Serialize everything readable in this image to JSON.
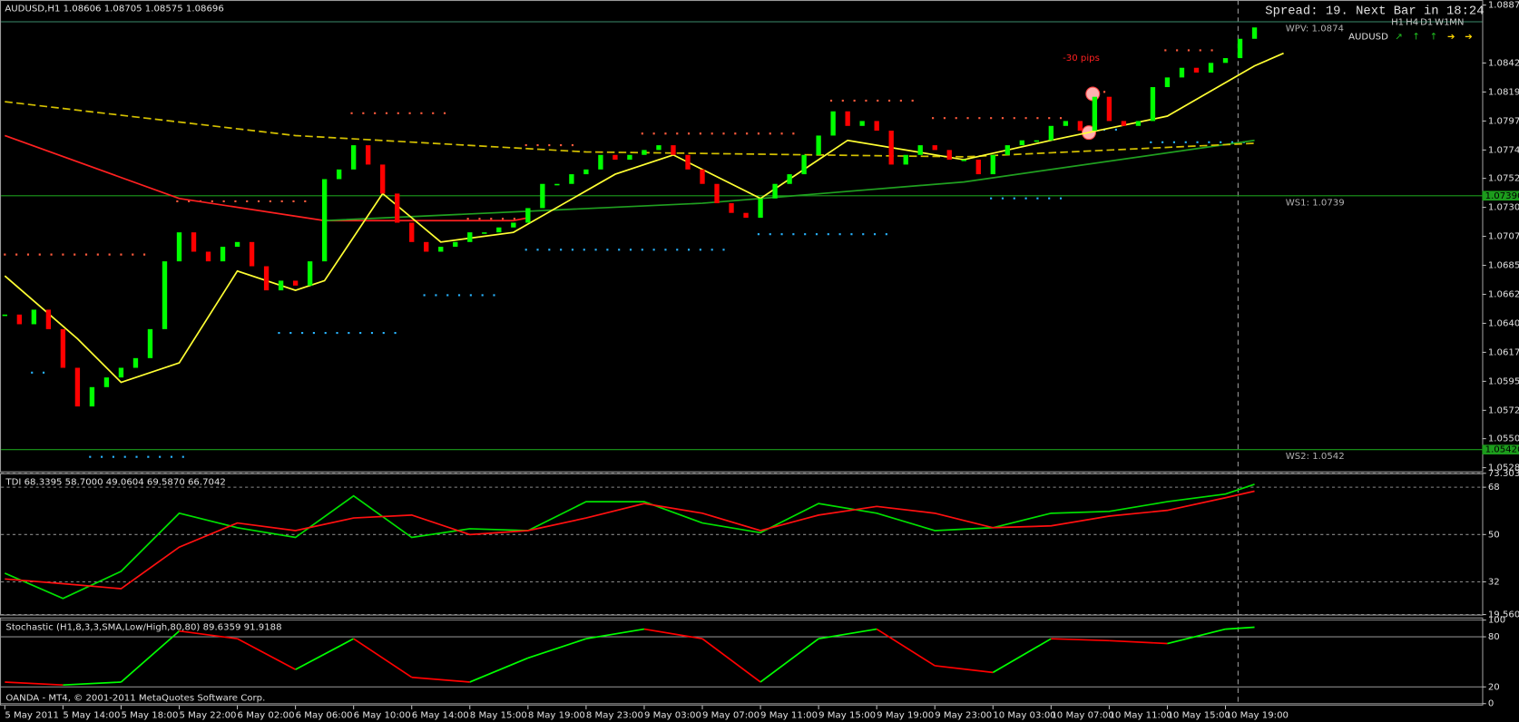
{
  "chart_data": [
    {
      "type": "candlestick",
      "title": "AUDUSD,H1 1.08606 1.08705 1.08575 1.08696",
      "spread": "Spread: 19. Next Bar in 18:24",
      "symbol": "AUDUSD",
      "timeframes": [
        "H1",
        "H4",
        "D1",
        "W1",
        "MN"
      ],
      "annotation": "-30 pips",
      "colors": {
        "up": "#00ff00",
        "down": "#ff0000"
      },
      "ylim": [
        1.05244,
        1.08909
      ],
      "yticks": [
        {
          "value": 1.0887,
          "label": "1.08870"
        },
        {
          "value": 1.0842,
          "label": "1.08420"
        },
        {
          "value": 1.08195,
          "label": "1.08195"
        },
        {
          "value": 1.0797,
          "label": "1.07970"
        },
        {
          "value": 1.07745,
          "label": "1.07745"
        },
        {
          "value": 1.07525,
          "label": "1.07525"
        },
        {
          "value": 1.073,
          "label": "1.07300"
        },
        {
          "value": 1.07075,
          "label": "1.07075"
        },
        {
          "value": 1.0685,
          "label": "1.06850"
        },
        {
          "value": 1.06625,
          "label": "1.06625"
        },
        {
          "value": 1.064,
          "label": "1.06400"
        },
        {
          "value": 1.06175,
          "label": "1.06175"
        },
        {
          "value": 1.0595,
          "label": "1.05950"
        },
        {
          "value": 1.05725,
          "label": "1.05725"
        },
        {
          "value": 1.05505,
          "label": "1.05505"
        },
        {
          "value": 1.0528,
          "label": "1.05280"
        }
      ],
      "close": [
        1.06468,
        1.06393,
        1.06506,
        1.06355,
        1.06055,
        1.05755,
        1.05905,
        1.0598,
        1.06055,
        1.0613,
        1.06355,
        1.06881,
        1.07106,
        1.06956,
        1.06881,
        1.06994,
        1.07031,
        1.06843,
        1.06656,
        1.06731,
        1.06693,
        1.06881,
        1.07519,
        1.07594,
        1.07782,
        1.07632,
        1.07407,
        1.07181,
        1.07031,
        1.06956,
        1.06994,
        1.07031,
        1.07106,
        1.07106,
        1.07144,
        1.07181,
        1.07294,
        1.07482,
        1.07482,
        1.07557,
        1.07594,
        1.07707,
        1.0767,
        1.07707,
        1.07745,
        1.07782,
        1.07707,
        1.07594,
        1.07482,
        1.07332,
        1.07257,
        1.07219,
        1.07369,
        1.07482,
        1.07557,
        1.07707,
        1.07857,
        1.08045,
        1.07932,
        1.0797,
        1.07895,
        1.07632,
        1.07707,
        1.07782,
        1.07745,
        1.0767,
        1.0767,
        1.07557,
        1.07707,
        1.07782,
        1.0782,
        1.0782,
        1.07932,
        1.0797,
        1.07895,
        1.08158,
        1.0797,
        1.07932,
        1.0797,
        1.08233,
        1.08308,
        1.08383,
        1.08346,
        1.08421,
        1.08458,
        1.08608,
        1.08696
      ],
      "moving_averages": [
        {
          "color": "#ff2020",
          "dashed": false,
          "x": [
            0,
            12,
            22,
            35,
            36
          ],
          "values": [
            1.07857,
            1.07369,
            1.07197,
            1.07197,
            1.07219
          ]
        },
        {
          "color": "#20a020",
          "dashed": false,
          "x": [
            22,
            48,
            66,
            86
          ],
          "values": [
            1.07197,
            1.07332,
            1.07497,
            1.0782
          ]
        },
        {
          "color": "#d4c000",
          "dashed": true,
          "x": [
            0,
            20,
            40,
            66,
            86
          ],
          "values": [
            1.0812,
            1.07857,
            1.0773,
            1.07692,
            1.07797
          ]
        },
        {
          "color": "#ffff33",
          "dashed": false,
          "x": [
            0,
            5,
            8,
            12,
            16,
            20,
            22,
            26,
            30,
            35,
            42,
            46,
            52,
            58,
            66,
            72,
            80,
            86,
            88
          ],
          "values": [
            1.06768,
            1.0628,
            1.05942,
            1.06093,
            1.06806,
            1.06656,
            1.06731,
            1.07407,
            1.07031,
            1.07106,
            1.07557,
            1.07707,
            1.07369,
            1.0782,
            1.0767,
            1.0782,
            1.08008,
            1.08398,
            1.08496
          ]
        }
      ],
      "pivots": [
        {
          "label": "WPV: 1.0874",
          "value": 1.0874,
          "color": "#3c8c6c"
        },
        {
          "label": "WS1: 1.0739",
          "value": 1.0739,
          "color": "#1c9c1c",
          "box": "1.07390"
        },
        {
          "label": "WS2: 1.0542",
          "value": 1.0542,
          "color": "#1c9c1c",
          "box": "1.05420"
        }
      ],
      "time_labels": [
        "5 May 2011",
        "5 May 14:00",
        "5 May 18:00",
        "5 May 22:00",
        "6 May 02:00",
        "6 May 06:00",
        "6 May 10:00",
        "6 May 14:00",
        "8 May 15:00",
        "8 May 19:00",
        "8 May 23:00",
        "9 May 03:00",
        "9 May 07:00",
        "9 May 11:00",
        "9 May 15:00",
        "9 May 19:00",
        "9 May 23:00",
        "10 May 03:00",
        "10 May 07:00",
        "10 May 11:00",
        "10 May 15:00",
        "10 May 19:00"
      ]
    },
    {
      "type": "line",
      "title": "TDI 68.3395 58.7000 49.0604 69.5870 66.7042",
      "ylim": [
        19.5602,
        73.3034
      ],
      "yticks": [
        73.3034,
        68,
        50,
        32,
        19.5602
      ],
      "x": [
        0,
        4,
        8,
        12,
        16,
        20,
        24,
        28,
        32,
        36,
        40,
        44,
        48,
        52,
        56,
        60,
        64,
        68,
        72,
        76,
        80,
        84,
        86
      ],
      "series": [
        {
          "color": "#00e000",
          "values": [
            35.3,
            25.7,
            36.0,
            58.1,
            52.6,
            48.9,
            64.7,
            48.9,
            52.2,
            51.5,
            62.5,
            62.5,
            54.4,
            50.7,
            61.8,
            58.1,
            51.5,
            52.6,
            58.1,
            58.8,
            62.5,
            65.4,
            69.1
          ]
        },
        {
          "color": "#ff1010",
          "values": [
            33.1,
            31.3,
            29.4,
            45.2,
            54.4,
            51.5,
            56.3,
            57.4,
            50.0,
            51.5,
            56.3,
            61.8,
            58.1,
            51.5,
            57.4,
            60.7,
            58.1,
            52.6,
            53.3,
            57.0,
            59.2,
            64.0,
            66.5
          ]
        }
      ]
    },
    {
      "type": "line",
      "title": "Stochastic (H1,8,3,3,SMA,Low/High,80,80) 89.6359 91.9188",
      "footer": "OANDA - MT4, © 2001-2011 MetaQuotes Software Corp.",
      "colors": {
        "up": "#00ff00",
        "down": "#ff0000"
      },
      "ylim": [
        0,
        100
      ],
      "yticks": [
        100,
        80,
        20,
        0
      ],
      "x": [
        0,
        4,
        8,
        12,
        16,
        20,
        24,
        28,
        32,
        36,
        40,
        44,
        48,
        52,
        56,
        60,
        64,
        68,
        72,
        76,
        80,
        84,
        86
      ],
      "values": [
        25.8,
        22.3,
        25.8,
        86.9,
        77.7,
        40.8,
        77.7,
        31.5,
        25.8,
        54.6,
        77.7,
        89.2,
        77.7,
        25.8,
        77.7,
        89.2,
        45.4,
        37.3,
        77.7,
        75.4,
        71.9,
        89.2,
        91.5
      ]
    }
  ]
}
